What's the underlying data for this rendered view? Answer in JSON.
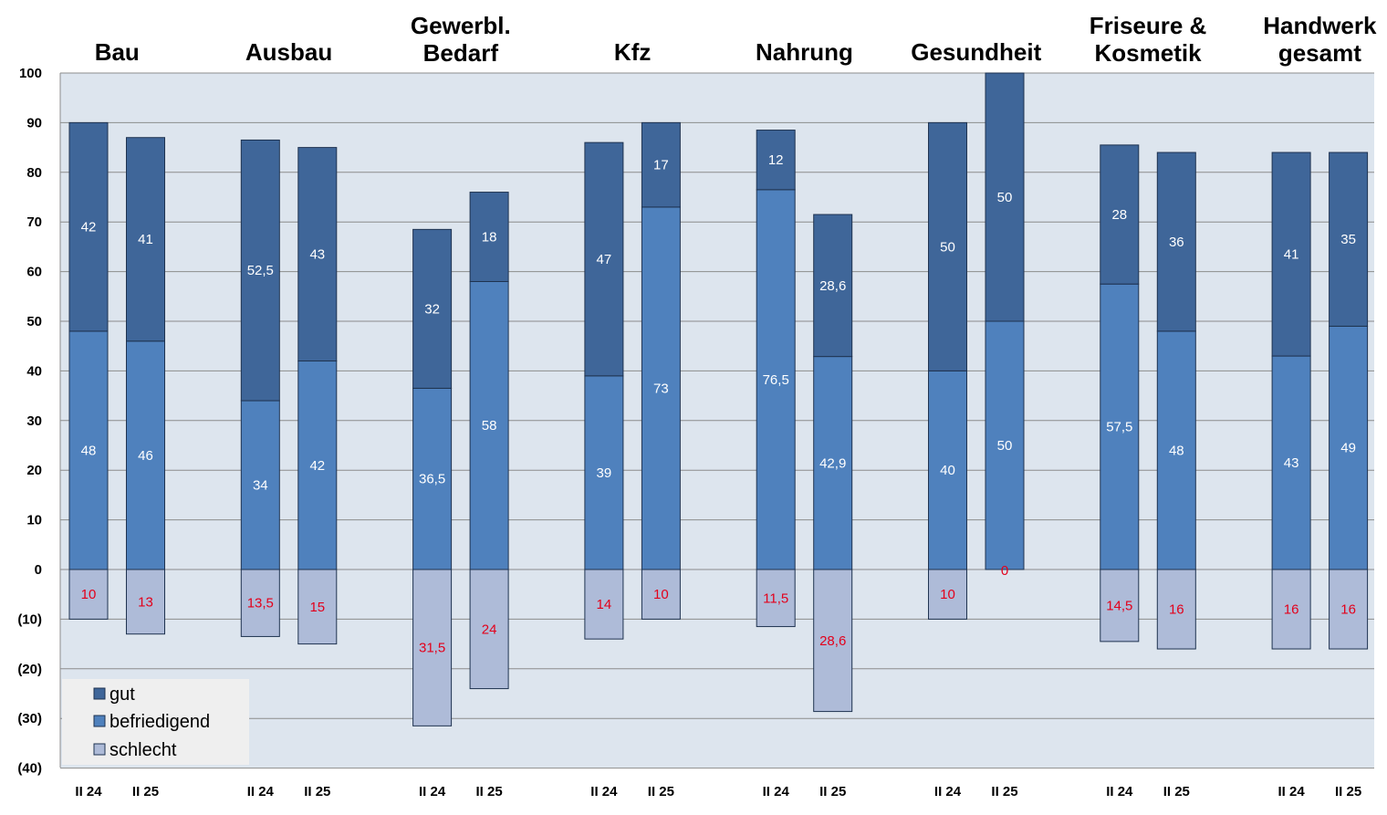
{
  "chart_data": {
    "type": "bar",
    "stacked": true,
    "diverging": true,
    "groups": [
      {
        "title": [
          "Bau"
        ],
        "bars": [
          {
            "label": "II 24",
            "gut": 42,
            "befriedigend": 48,
            "schlecht": 10,
            "labels": {
              "gut": "42",
              "befriedigend": "48",
              "schlecht": "10"
            }
          },
          {
            "label": "II 25",
            "gut": 41,
            "befriedigend": 46,
            "schlecht": 13,
            "labels": {
              "gut": "41",
              "befriedigend": "46",
              "schlecht": "13"
            }
          }
        ]
      },
      {
        "title": [
          "Ausbau"
        ],
        "bars": [
          {
            "label": "II 24",
            "gut": 52.5,
            "befriedigend": 34,
            "schlecht": 13.5,
            "labels": {
              "gut": "52,5",
              "befriedigend": "34",
              "schlecht": "13,5"
            }
          },
          {
            "label": "II 25",
            "gut": 43,
            "befriedigend": 42,
            "schlecht": 15,
            "labels": {
              "gut": "43",
              "befriedigend": "42",
              "schlecht": "15"
            }
          }
        ]
      },
      {
        "title": [
          "Gewerbl.",
          "Bedarf"
        ],
        "bars": [
          {
            "label": "II 24",
            "gut": 32,
            "befriedigend": 36.5,
            "schlecht": 31.5,
            "labels": {
              "gut": "32",
              "befriedigend": "36,5",
              "schlecht": "31,5"
            }
          },
          {
            "label": "II 25",
            "gut": 18,
            "befriedigend": 58,
            "schlecht": 24,
            "labels": {
              "gut": "18",
              "befriedigend": "58",
              "schlecht": "24"
            }
          }
        ]
      },
      {
        "title": [
          "Kfz"
        ],
        "bars": [
          {
            "label": "II 24",
            "gut": 47,
            "befriedigend": 39,
            "schlecht": 14,
            "labels": {
              "gut": "47",
              "befriedigend": "39",
              "schlecht": "14"
            }
          },
          {
            "label": "II 25",
            "gut": 17,
            "befriedigend": 73,
            "schlecht": 10,
            "labels": {
              "gut": "17",
              "befriedigend": "73",
              "schlecht": "10"
            }
          }
        ]
      },
      {
        "title": [
          "Nahrung"
        ],
        "bars": [
          {
            "label": "II 24",
            "gut": 12,
            "befriedigend": 76.5,
            "schlecht": 11.5,
            "labels": {
              "gut": "12",
              "befriedigend": "76,5",
              "schlecht": "11,5"
            }
          },
          {
            "label": "II 25",
            "gut": 28.6,
            "befriedigend": 42.9,
            "schlecht": 28.6,
            "labels": {
              "gut": "28,6",
              "befriedigend": "42,9",
              "schlecht": "28,6"
            }
          }
        ]
      },
      {
        "title": [
          "Gesundheit"
        ],
        "bars": [
          {
            "label": "II 24",
            "gut": 50,
            "befriedigend": 40,
            "schlecht": 10,
            "labels": {
              "gut": "50",
              "befriedigend": "40",
              "schlecht": "10"
            }
          },
          {
            "label": "II 25",
            "gut": 50,
            "befriedigend": 50,
            "schlecht": 0,
            "labels": {
              "gut": "50",
              "befriedigend": "50",
              "schlecht": "0"
            }
          }
        ]
      },
      {
        "title": [
          "Friseure &",
          "Kosmetik"
        ],
        "bars": [
          {
            "label": "II 24",
            "gut": 28,
            "befriedigend": 57.5,
            "schlecht": 14.5,
            "labels": {
              "gut": "28",
              "befriedigend": "57,5",
              "schlecht": "14,5"
            }
          },
          {
            "label": "II 25",
            "gut": 36,
            "befriedigend": 48,
            "schlecht": 16,
            "labels": {
              "gut": "36",
              "befriedigend": "48",
              "schlecht": "16"
            }
          }
        ]
      },
      {
        "title": [
          "Handwerk",
          "gesamt"
        ],
        "bars": [
          {
            "label": "II 24",
            "gut": 41,
            "befriedigend": 43,
            "schlecht": 16,
            "labels": {
              "gut": "41",
              "befriedigend": "43",
              "schlecht": "16"
            }
          },
          {
            "label": "II 25",
            "gut": 35,
            "befriedigend": 49,
            "schlecht": 16,
            "labels": {
              "gut": "35",
              "befriedigend": "49",
              "schlecht": "16"
            }
          }
        ]
      }
    ],
    "series": [
      {
        "key": "gut",
        "name": "gut",
        "color": "#3f6699",
        "label_color": "#ffffff"
      },
      {
        "key": "befriedigend",
        "name": "befriedigend",
        "color": "#4f81bd",
        "label_color": "#ffffff"
      },
      {
        "key": "schlecht",
        "name": "schlecht",
        "color": "#aebbd8",
        "label_color": "#e3001b"
      }
    ],
    "ylim": [
      -40,
      100
    ],
    "yticks": [
      {
        "value": 100,
        "label": "100"
      },
      {
        "value": 90,
        "label": "90"
      },
      {
        "value": 80,
        "label": "80"
      },
      {
        "value": 70,
        "label": "70"
      },
      {
        "value": 60,
        "label": "60"
      },
      {
        "value": 50,
        "label": "50"
      },
      {
        "value": 40,
        "label": "40"
      },
      {
        "value": 30,
        "label": "30"
      },
      {
        "value": 20,
        "label": "20"
      },
      {
        "value": 10,
        "label": "10"
      },
      {
        "value": 0,
        "label": "0"
      },
      {
        "value": -10,
        "label": "(10)"
      },
      {
        "value": -20,
        "label": "(20)"
      },
      {
        "value": -30,
        "label": "(30)"
      },
      {
        "value": -40,
        "label": "(40)"
      }
    ],
    "grid": true,
    "legend": {
      "position": "bottom-left",
      "entries": [
        "gut",
        "befriedigend",
        "schlecht"
      ]
    },
    "colors": {
      "plot_background": "#dde5ee",
      "gridline": "#8c8c8c",
      "bar_border": "#1f3350",
      "legend_background": "#efefef"
    }
  }
}
